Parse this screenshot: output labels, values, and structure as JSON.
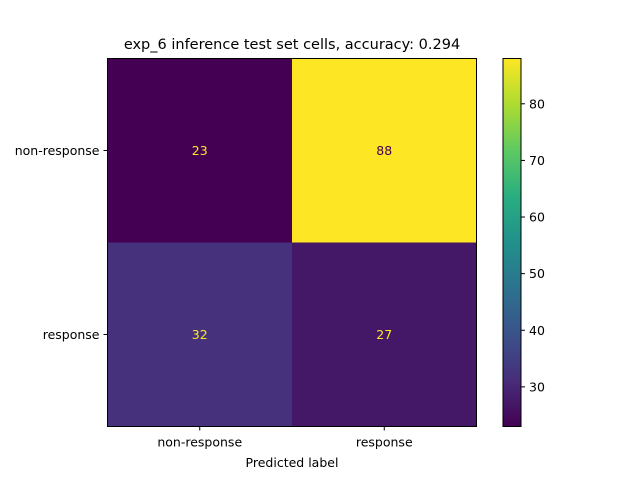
{
  "chart_data": {
    "type": "heatmap",
    "title": "exp_6 inference test set cells, accuracy: 0.294",
    "xlabel": "Predicted label",
    "ylabel": "",
    "x_categories": [
      "non-response",
      "response"
    ],
    "y_categories": [
      "non-response",
      "response"
    ],
    "values": [
      [
        23,
        88
      ],
      [
        32,
        27
      ]
    ],
    "colormap": "viridis",
    "colorbar": {
      "range": [
        23,
        88
      ],
      "ticks": [
        30,
        40,
        50,
        60,
        70,
        80
      ]
    },
    "cell_text_colors": {
      "on_dark": "#fde725",
      "on_light": "#440154"
    }
  }
}
